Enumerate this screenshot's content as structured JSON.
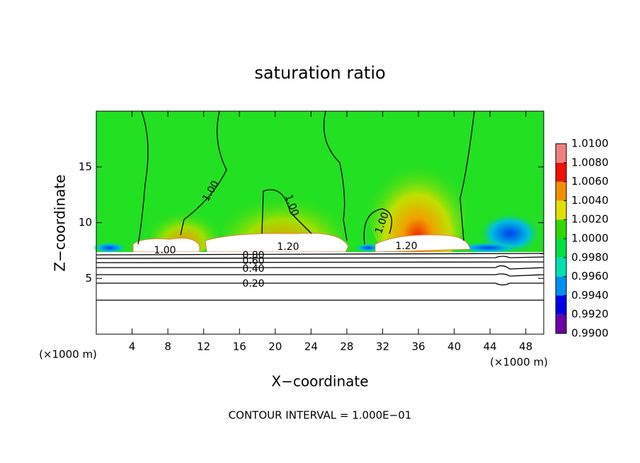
{
  "chart_data": {
    "type": "contour",
    "title": "saturation ratio",
    "x_label": "X−coordinate",
    "y_label": "Z−coordinate",
    "x_unit": "(×1000 m)",
    "y_unit": "(×1000 m)",
    "footer": "CONTOUR INTERVAL = 1.000E−01",
    "xlim": [
      0,
      50
    ],
    "xticks": [
      4,
      8,
      12,
      16,
      20,
      24,
      28,
      32,
      36,
      40,
      44,
      48
    ],
    "ylim": [
      0,
      20
    ],
    "yticks": [
      5,
      10,
      15
    ],
    "contour_labels": [
      "1.00",
      "1.00",
      "1.00",
      "1.00",
      "1.20",
      "1.20",
      "0.80",
      "0.60",
      "0.40",
      "0.20"
    ],
    "colorbar": {
      "lim": [
        0.99,
        1.01
      ],
      "ticks": [
        {
          "value": 0.99,
          "label": "0.9900"
        },
        {
          "value": 0.992,
          "label": "0.9920"
        },
        {
          "value": 0.994,
          "label": "0.9940"
        },
        {
          "value": 0.996,
          "label": "0.9960"
        },
        {
          "value": 0.998,
          "label": "0.9980"
        },
        {
          "value": 1.0,
          "label": "1.0000"
        },
        {
          "value": 1.002,
          "label": "1.0020"
        },
        {
          "value": 1.004,
          "label": "1.0040"
        },
        {
          "value": 1.006,
          "label": "1.0060"
        },
        {
          "value": 1.008,
          "label": "1.0080"
        },
        {
          "value": 1.01,
          "label": "1.0100"
        }
      ],
      "colors": [
        "#6a00a8",
        "#0000e6",
        "#0090f0",
        "#00e0b0",
        "#00e040",
        "#30d800",
        "#e0e000",
        "#f09000",
        "#f01000",
        "#f08080"
      ]
    }
  }
}
